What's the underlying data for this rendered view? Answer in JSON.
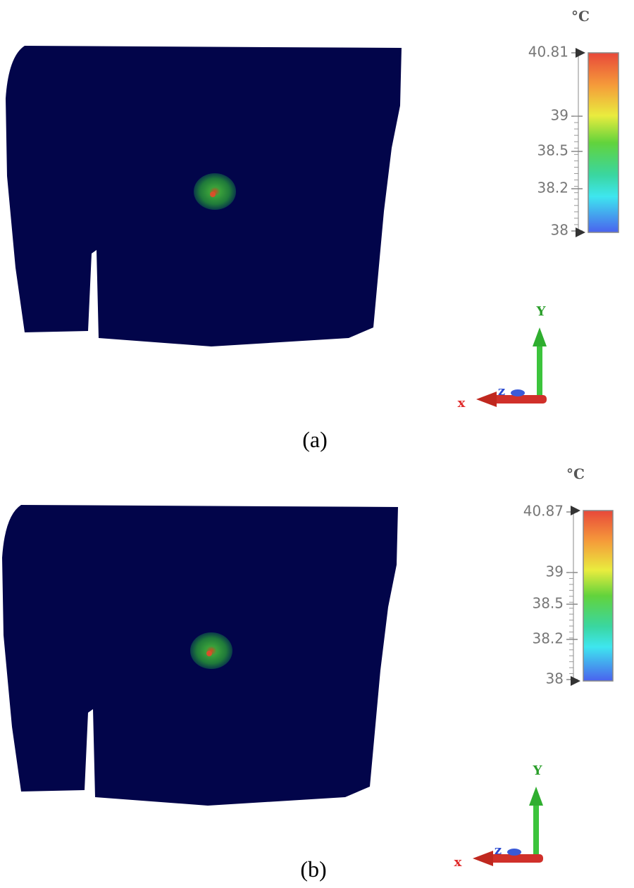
{
  "panels": [
    {
      "unit": "°C",
      "colorbar_ticks": [
        "40.81",
        "39",
        "38.5",
        "38.2",
        "38"
      ],
      "axis_labels": {
        "x": "x",
        "y": "Y",
        "z": "z"
      },
      "caption": "(a)"
    },
    {
      "unit": "°C",
      "colorbar_ticks": [
        "40.87",
        "39",
        "38.5",
        "38.2",
        "38"
      ],
      "axis_labels": {
        "x": "x",
        "y": "Y",
        "z": "z"
      },
      "caption": "(b)"
    }
  ]
}
